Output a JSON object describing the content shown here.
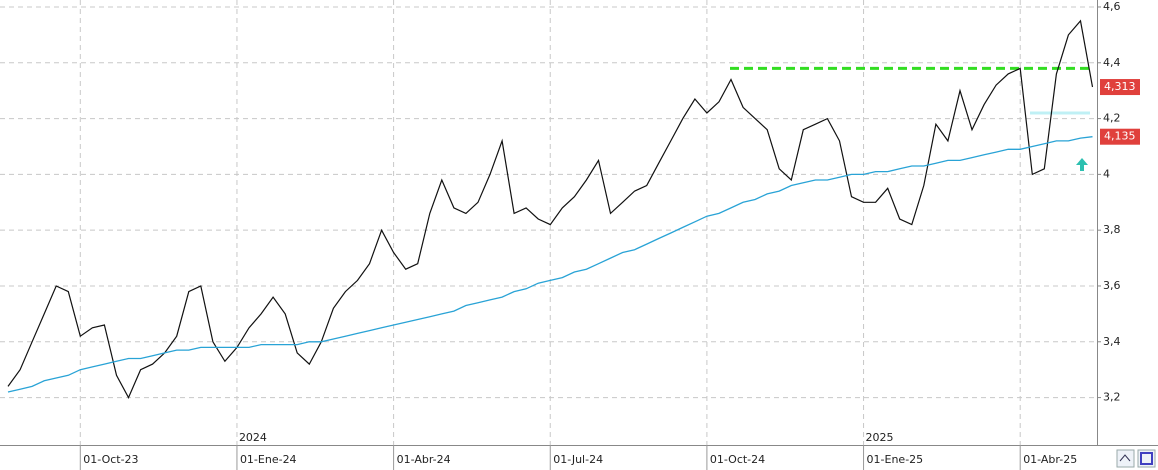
{
  "chart_data": {
    "type": "line",
    "categories": [
      null,
      null,
      null,
      null,
      null,
      null,
      "01-Oct-23",
      null,
      null,
      null,
      null,
      null,
      null,
      null,
      null,
      null,
      null,
      null,
      null,
      "01-Ene-24",
      null,
      null,
      null,
      null,
      null,
      null,
      null,
      null,
      null,
      null,
      null,
      null,
      "01-Abr-24",
      null,
      null,
      null,
      null,
      null,
      null,
      null,
      null,
      null,
      null,
      null,
      null,
      "01-Jul-24",
      null,
      null,
      null,
      null,
      null,
      null,
      null,
      null,
      null,
      null,
      null,
      null,
      "01-Oct-24",
      null,
      null,
      null,
      null,
      null,
      null,
      null,
      null,
      null,
      null,
      null,
      null,
      "01-Ene-25",
      null,
      null,
      null,
      null,
      null,
      null,
      null,
      null,
      null,
      null,
      null,
      null,
      "01-Abr-25",
      null,
      null,
      null,
      null,
      null,
      null
    ],
    "series": [
      {
        "color": "#111111",
        "values": [
          3.24,
          3.3,
          3.4,
          3.5,
          3.6,
          3.58,
          3.42,
          3.45,
          3.46,
          3.28,
          3.2,
          3.3,
          3.32,
          3.36,
          3.42,
          3.58,
          3.6,
          3.4,
          3.33,
          3.38,
          3.45,
          3.5,
          3.56,
          3.5,
          3.36,
          3.32,
          3.4,
          3.52,
          3.58,
          3.62,
          3.68,
          3.8,
          3.72,
          3.66,
          3.68,
          3.86,
          3.98,
          3.88,
          3.86,
          3.9,
          4.0,
          4.12,
          3.86,
          3.88,
          3.84,
          3.82,
          3.88,
          3.92,
          3.98,
          4.05,
          3.86,
          3.9,
          3.94,
          3.96,
          4.04,
          4.12,
          4.2,
          4.27,
          4.22,
          4.26,
          4.34,
          4.24,
          4.2,
          4.16,
          4.02,
          3.98,
          4.16,
          4.18,
          4.2,
          4.12,
          3.92,
          3.9,
          3.9,
          3.95,
          3.84,
          3.82,
          3.96,
          4.18,
          4.12,
          4.3,
          4.16,
          4.25,
          4.32,
          4.36,
          4.38,
          4.0,
          4.02,
          4.36,
          4.5,
          4.55,
          4.313
        ],
        "last_label": "4,313",
        "label_color": "#e0403c"
      },
      {
        "color": "#29a3d6",
        "values": [
          3.22,
          3.23,
          3.24,
          3.26,
          3.27,
          3.28,
          3.3,
          3.31,
          3.32,
          3.33,
          3.34,
          3.34,
          3.35,
          3.36,
          3.37,
          3.37,
          3.38,
          3.38,
          3.38,
          3.38,
          3.38,
          3.39,
          3.39,
          3.39,
          3.39,
          3.4,
          3.4,
          3.41,
          3.42,
          3.43,
          3.44,
          3.45,
          3.46,
          3.47,
          3.48,
          3.49,
          3.5,
          3.51,
          3.53,
          3.54,
          3.55,
          3.56,
          3.58,
          3.59,
          3.61,
          3.62,
          3.63,
          3.65,
          3.66,
          3.68,
          3.7,
          3.72,
          3.73,
          3.75,
          3.77,
          3.79,
          3.81,
          3.83,
          3.85,
          3.86,
          3.88,
          3.9,
          3.91,
          3.93,
          3.94,
          3.96,
          3.97,
          3.98,
          3.98,
          3.99,
          4.0,
          4.0,
          4.01,
          4.01,
          4.02,
          4.03,
          4.03,
          4.04,
          4.05,
          4.05,
          4.06,
          4.07,
          4.08,
          4.09,
          4.09,
          4.1,
          4.11,
          4.12,
          4.12,
          4.13,
          4.135
        ],
        "last_label": "4,135",
        "label_color": "#e0403c"
      }
    ],
    "hlines": [
      {
        "value": 4.38,
        "color": "#33dd22"
      },
      {
        "value": 4.22,
        "color": "#bff0f5"
      }
    ],
    "annotations": [
      {
        "text": "2024",
        "category": "01-Ene-24"
      },
      {
        "text": "2025",
        "category": "01-Ene-25"
      }
    ],
    "ylim": [
      3.03,
      4.625
    ],
    "yticks": [
      {
        "value": 3.2,
        "label": "3,2"
      },
      {
        "value": 3.4,
        "label": "3,4"
      },
      {
        "value": 3.6,
        "label": "3,6"
      },
      {
        "value": 3.8,
        "label": "3,8"
      },
      {
        "value": 4,
        "label": "4"
      },
      {
        "value": 4.2,
        "label": "4,2"
      },
      {
        "value": 4.4,
        "label": "4,4"
      },
      {
        "value": 4.6,
        "label": "4,6"
      }
    ],
    "grid": true
  }
}
